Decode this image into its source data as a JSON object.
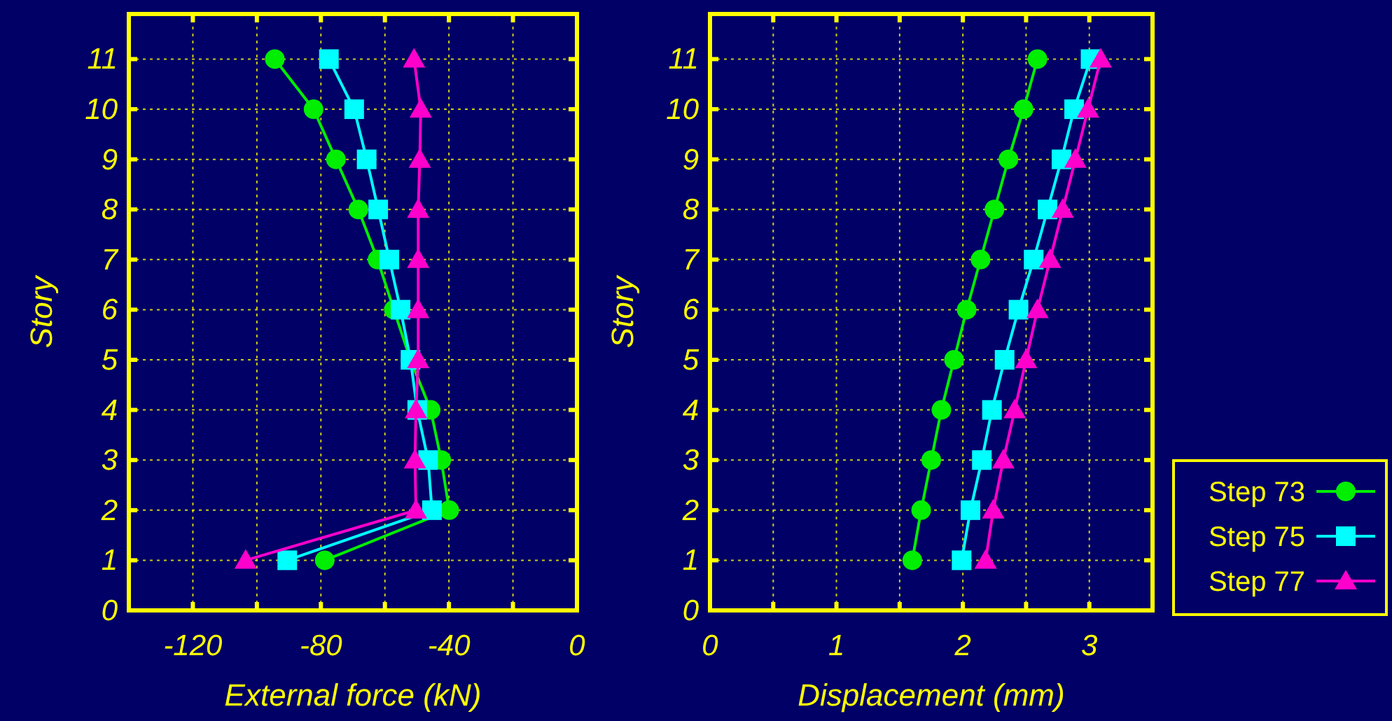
{
  "chart_data": [
    {
      "type": "line",
      "xlabel": "External force (kN)",
      "ylabel": "Story",
      "xlim": [
        -140,
        0
      ],
      "ylim": [
        0,
        11.9
      ],
      "xticks": [
        {
          "value": -140,
          "label": null
        },
        -120,
        {
          "value": -100,
          "label": null
        },
        -80,
        {
          "value": -60,
          "label": null
        },
        -40,
        {
          "value": -20,
          "label": null
        },
        0
      ],
      "yticks": [
        0,
        1,
        2,
        3,
        4,
        5,
        6,
        7,
        8,
        9,
        10,
        11
      ],
      "grid": true,
      "legend": false,
      "series": [
        {
          "color": "#00ee00",
          "marker": "circle",
          "x": [
            -78.8,
            -39.9,
            -42.4,
            -45.7,
            -52,
            -57.2,
            -62.3,
            -68.3,
            -75.3,
            -82.3,
            -94.4
          ],
          "values": [
            1,
            2,
            3,
            4,
            5,
            6,
            7,
            8,
            9,
            10,
            11
          ]
        },
        {
          "color": "#00ffff",
          "marker": "square",
          "x": [
            -90.5,
            -45.3,
            -46.5,
            -49.9,
            -52,
            -55.1,
            -58.6,
            -62.1,
            -65.7,
            -69.6,
            -77.5
          ],
          "values": [
            1,
            2,
            3,
            4,
            5,
            6,
            7,
            8,
            9,
            10,
            11
          ]
        },
        {
          "color": "#ff00cc",
          "marker": "triangle",
          "x": [
            -103.5,
            -50.3,
            -50.6,
            -50.3,
            -49.6,
            -49.6,
            -49.6,
            -49.6,
            -49.1,
            -48.8,
            -50.9
          ],
          "values": [
            1,
            2,
            3,
            4,
            5,
            6,
            7,
            8,
            9,
            10,
            11
          ]
        }
      ]
    },
    {
      "type": "line",
      "xlabel": "Displacement (mm)",
      "ylabel": "Story",
      "xlim": [
        0,
        3.5
      ],
      "ylim": [
        0,
        11.9
      ],
      "xticks": [
        0,
        {
          "value": 0.5,
          "label": null
        },
        1,
        {
          "value": 1.5,
          "label": null
        },
        2,
        {
          "value": 2.5,
          "label": null
        },
        3,
        {
          "value": 3.5,
          "label": null
        }
      ],
      "yticks": [
        0,
        1,
        2,
        3,
        4,
        5,
        6,
        7,
        8,
        9,
        10,
        11
      ],
      "grid": true,
      "legend": "right",
      "series": [
        {
          "name": "Step 73",
          "color": "#00ee00",
          "marker": "circle",
          "x": [
            1.6,
            1.67,
            1.75,
            1.83,
            1.93,
            2.03,
            2.14,
            2.25,
            2.36,
            2.48,
            2.59
          ],
          "values": [
            1,
            2,
            3,
            4,
            5,
            6,
            7,
            8,
            9,
            10,
            11
          ]
        },
        {
          "name": "Step 75",
          "color": "#00ffff",
          "marker": "square",
          "x": [
            1.99,
            2.06,
            2.15,
            2.23,
            2.33,
            2.44,
            2.56,
            2.67,
            2.78,
            2.88,
            3.01
          ],
          "values": [
            1,
            2,
            3,
            4,
            5,
            6,
            7,
            8,
            9,
            10,
            11
          ]
        },
        {
          "name": "Step 77",
          "color": "#ff00cc",
          "marker": "triangle",
          "x": [
            2.18,
            2.24,
            2.32,
            2.41,
            2.5,
            2.59,
            2.69,
            2.79,
            2.89,
            2.99,
            3.09
          ],
          "values": [
            1,
            2,
            3,
            4,
            5,
            6,
            7,
            8,
            9,
            10,
            11
          ]
        }
      ]
    }
  ]
}
